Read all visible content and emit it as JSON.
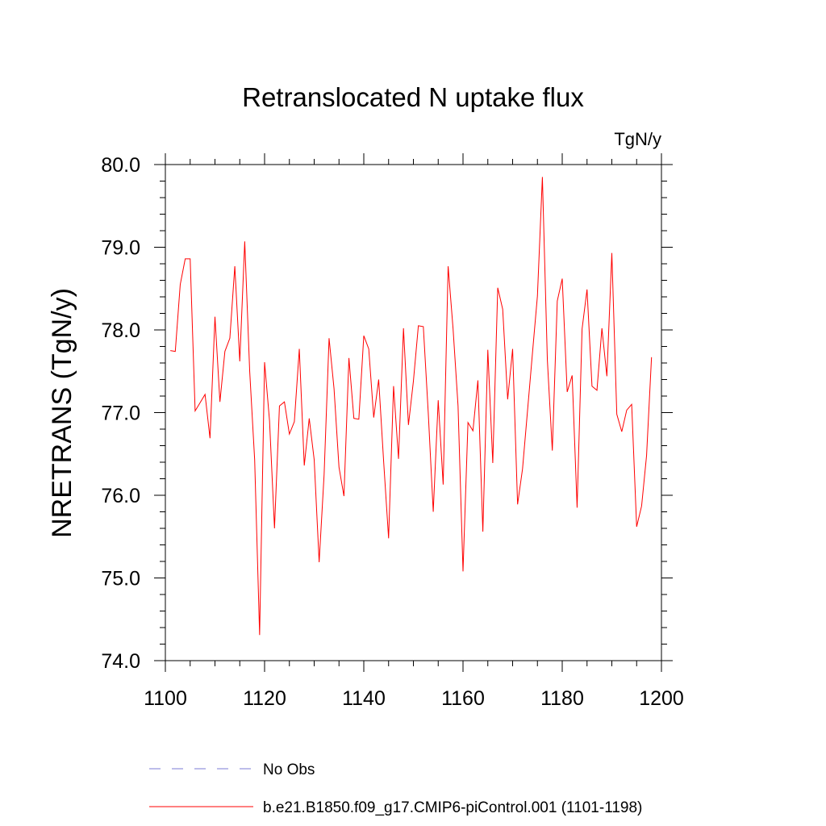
{
  "chart_data": {
    "type": "line",
    "title": "Retranslocated N uptake flux",
    "units": "TgN/y",
    "ylabel": "NRETRANS  (TgN/y)",
    "xlabel": "",
    "xlim": [
      1100,
      1200
    ],
    "ylim": [
      74.0,
      80.0
    ],
    "xticks": [
      1100,
      1120,
      1140,
      1160,
      1180,
      1200
    ],
    "xtick_labels": [
      "1100",
      "1120",
      "1140",
      "1160",
      "1180",
      "1200"
    ],
    "yticks": [
      74.0,
      75.0,
      76.0,
      77.0,
      78.0,
      79.0,
      80.0
    ],
    "ytick_labels": [
      "74.0",
      "75.0",
      "76.0",
      "77.0",
      "78.0",
      "79.0",
      "80.0"
    ],
    "grid": false,
    "legend_position": "bottom",
    "series": [
      {
        "name": "No Obs",
        "color": "#7b7bd6",
        "style": "dashed",
        "x": [],
        "values": []
      },
      {
        "name": "b.e21.B1850.f09_g17.CMIP6-piControl.001 (1101-1198)",
        "color": "#ff0000",
        "style": "solid",
        "x": [
          1101,
          1102,
          1103,
          1104,
          1105,
          1106,
          1107,
          1108,
          1109,
          1110,
          1111,
          1112,
          1113,
          1114,
          1115,
          1116,
          1117,
          1118,
          1119,
          1120,
          1121,
          1122,
          1123,
          1124,
          1125,
          1126,
          1127,
          1128,
          1129,
          1130,
          1131,
          1132,
          1133,
          1134,
          1135,
          1136,
          1137,
          1138,
          1139,
          1140,
          1141,
          1142,
          1143,
          1144,
          1145,
          1146,
          1147,
          1148,
          1149,
          1150,
          1151,
          1152,
          1153,
          1154,
          1155,
          1156,
          1157,
          1158,
          1159,
          1160,
          1161,
          1162,
          1163,
          1164,
          1165,
          1166,
          1167,
          1168,
          1169,
          1170,
          1171,
          1172,
          1173,
          1174,
          1175,
          1176,
          1177,
          1178,
          1179,
          1180,
          1181,
          1182,
          1183,
          1184,
          1185,
          1186,
          1187,
          1188,
          1189,
          1190,
          1191,
          1192,
          1193,
          1194,
          1195,
          1196,
          1197,
          1198
        ],
        "values": [
          77.75,
          77.74,
          78.55,
          78.86,
          78.86,
          77.02,
          77.12,
          77.22,
          76.69,
          78.16,
          77.13,
          77.74,
          77.9,
          78.77,
          77.62,
          79.07,
          77.5,
          76.43,
          74.31,
          77.61,
          76.9,
          75.6,
          77.08,
          77.13,
          76.74,
          76.89,
          77.77,
          76.36,
          76.93,
          76.43,
          75.19,
          76.25,
          77.9,
          77.29,
          76.34,
          75.99,
          77.66,
          76.93,
          76.92,
          77.93,
          77.77,
          76.94,
          77.4,
          76.41,
          75.48,
          77.32,
          76.44,
          78.02,
          76.85,
          77.38,
          78.05,
          78.04,
          76.99,
          75.8,
          77.15,
          76.13,
          78.77,
          78.01,
          77.08,
          75.08,
          76.88,
          76.78,
          77.39,
          75.56,
          77.76,
          76.39,
          78.51,
          78.25,
          77.16,
          77.77,
          75.89,
          76.32,
          77.02,
          77.72,
          78.41,
          79.85,
          77.64,
          76.54,
          78.35,
          78.62,
          77.25,
          77.45,
          75.85,
          78.01,
          78.49,
          77.32,
          77.27,
          78.02,
          77.44,
          78.93,
          76.98,
          76.77,
          77.03,
          77.1,
          75.62,
          75.87,
          76.48,
          77.67
        ]
      }
    ]
  }
}
